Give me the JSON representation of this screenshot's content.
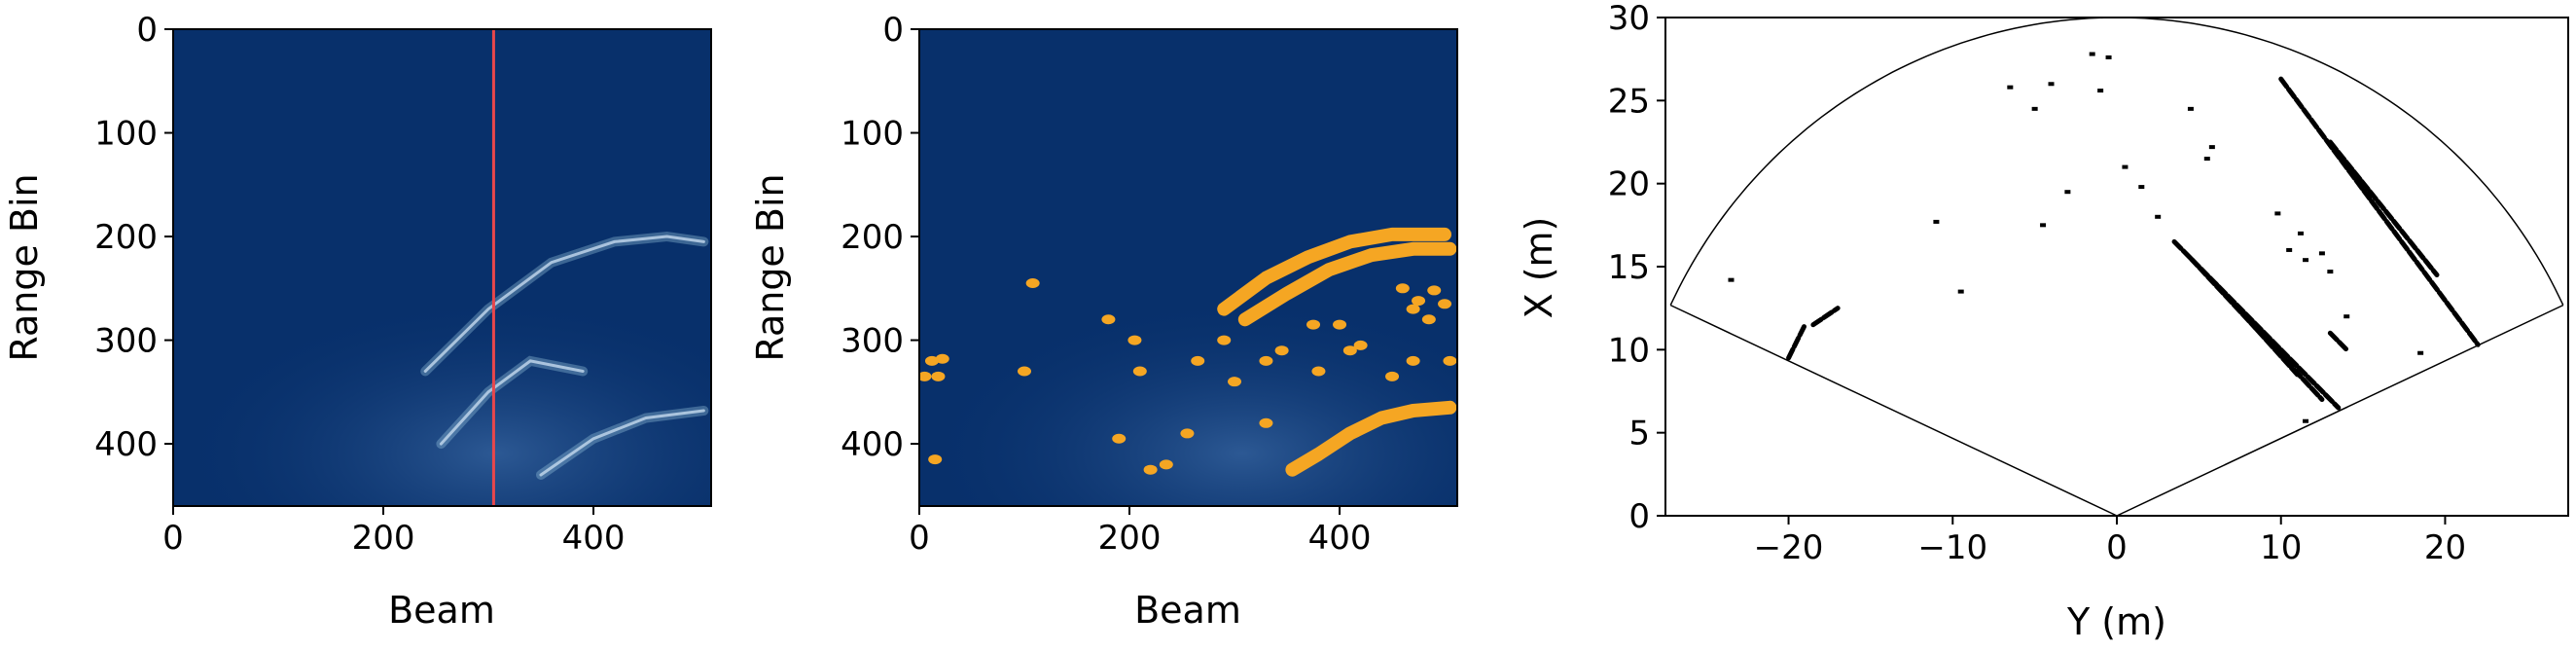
{
  "chart_data": [
    {
      "type": "heatmap",
      "title": "",
      "xlabel": "Beam",
      "ylabel": "Range Bin",
      "xlim": [
        0,
        512
      ],
      "ylim": [
        460,
        0
      ],
      "x_ticks": [
        0,
        200,
        400
      ],
      "y_ticks": [
        0,
        100,
        200,
        300,
        400
      ],
      "colormap": "Blues_r",
      "background_color": "#08306b",
      "vertical_marker": {
        "x": 305,
        "color": "#e8474c"
      },
      "bright_arcs": [
        {
          "points": [
            [
              240,
              330
            ],
            [
              300,
              270
            ],
            [
              360,
              225
            ],
            [
              420,
              205
            ],
            [
              470,
              200
            ],
            [
              505,
              205
            ]
          ]
        },
        {
          "points": [
            [
              255,
              400
            ],
            [
              300,
              350
            ],
            [
              340,
              320
            ],
            [
              390,
              330
            ]
          ]
        },
        {
          "points": [
            [
              350,
              430
            ],
            [
              400,
              395
            ],
            [
              450,
              375
            ],
            [
              505,
              368
            ]
          ]
        }
      ],
      "grid": false,
      "legend": "none"
    },
    {
      "type": "heatmap",
      "title": "",
      "xlabel": "Beam",
      "ylabel": "Range Bin",
      "xlim": [
        0,
        512
      ],
      "ylim": [
        460,
        0
      ],
      "x_ticks": [
        0,
        200,
        400
      ],
      "y_ticks": [
        0,
        100,
        200,
        300,
        400
      ],
      "colormap": "Blues_r",
      "background_color": "#08306b",
      "detection_color": "#f5a623",
      "detections": [
        [
          5,
          335
        ],
        [
          12,
          320
        ],
        [
          18,
          335
        ],
        [
          22,
          318
        ],
        [
          15,
          415
        ],
        [
          100,
          330
        ],
        [
          108,
          245
        ],
        [
          180,
          280
        ],
        [
          205,
          300
        ],
        [
          210,
          330
        ],
        [
          190,
          395
        ],
        [
          220,
          425
        ],
        [
          235,
          420
        ],
        [
          255,
          390
        ],
        [
          265,
          320
        ],
        [
          290,
          300
        ],
        [
          300,
          340
        ],
        [
          330,
          320
        ],
        [
          345,
          310
        ],
        [
          330,
          380
        ],
        [
          375,
          285
        ],
        [
          380,
          330
        ],
        [
          400,
          285
        ],
        [
          410,
          310
        ],
        [
          420,
          305
        ],
        [
          450,
          335
        ],
        [
          470,
          320
        ],
        [
          505,
          320
        ],
        [
          460,
          250
        ],
        [
          475,
          262
        ],
        [
          490,
          252
        ],
        [
          470,
          270
        ],
        [
          485,
          280
        ],
        [
          500,
          265
        ]
      ],
      "detection_arcs": [
        {
          "points": [
            [
              290,
              270
            ],
            [
              330,
              240
            ],
            [
              370,
              220
            ],
            [
              410,
              205
            ],
            [
              450,
              198
            ],
            [
              500,
              198
            ]
          ]
        },
        {
          "points": [
            [
              310,
              280
            ],
            [
              350,
              255
            ],
            [
              390,
              232
            ],
            [
              430,
              218
            ],
            [
              470,
              212
            ],
            [
              505,
              212
            ]
          ]
        },
        {
          "points": [
            [
              355,
              425
            ],
            [
              380,
              410
            ],
            [
              410,
              390
            ],
            [
              440,
              375
            ],
            [
              470,
              368
            ],
            [
              505,
              365
            ]
          ]
        }
      ],
      "grid": false,
      "legend": "none"
    },
    {
      "type": "scatter",
      "title": "",
      "xlabel": "Y (m)",
      "ylabel": "X (m)",
      "xlim": [
        -27.5,
        27.5
      ],
      "ylim": [
        0,
        30
      ],
      "x_ticks": [
        -20,
        -10,
        0,
        10,
        20
      ],
      "x_tick_labels": [
        "−20",
        "−10",
        "0",
        "10",
        "20"
      ],
      "y_ticks": [
        0,
        5,
        10,
        15,
        20,
        25,
        30
      ],
      "point_color": "#000000",
      "fov": {
        "max_range": 30,
        "half_angle_deg": 65
      },
      "segments": [
        {
          "from": [
            3.5,
            16.5
          ],
          "to": [
            13.5,
            6.5
          ]
        },
        {
          "from": [
            4.5,
            15.5
          ],
          "to": [
            12.5,
            7.0
          ]
        },
        {
          "from": [
            6.0,
            14.0
          ],
          "to": [
            11.0,
            8.5
          ]
        },
        {
          "from": [
            10.0,
            26.3
          ],
          "to": [
            22.0,
            10.3
          ]
        },
        {
          "from": [
            13.0,
            22.5
          ],
          "to": [
            19.5,
            14.5
          ]
        },
        {
          "from": [
            -20.0,
            9.5
          ],
          "to": [
            -19.0,
            11.5
          ]
        },
        {
          "from": [
            -18.5,
            11.5
          ],
          "to": [
            -17.0,
            12.5
          ]
        },
        {
          "from": [
            13.0,
            11.0
          ],
          "to": [
            14.0,
            10.0
          ]
        }
      ],
      "points": [
        [
          -23.5,
          14.2
        ],
        [
          -11.0,
          17.7
        ],
        [
          -6.5,
          25.8
        ],
        [
          -5.0,
          24.5
        ],
        [
          -4.0,
          26.0
        ],
        [
          -1.5,
          27.8
        ],
        [
          -0.5,
          27.6
        ],
        [
          -1.0,
          25.6
        ],
        [
          -3.0,
          19.5
        ],
        [
          -4.5,
          17.5
        ],
        [
          -9.5,
          13.5
        ],
        [
          0.5,
          21.0
        ],
        [
          1.5,
          19.8
        ],
        [
          2.5,
          18.0
        ],
        [
          4.5,
          24.5
        ],
        [
          5.5,
          21.5
        ],
        [
          5.8,
          22.2
        ],
        [
          9.8,
          18.2
        ],
        [
          10.5,
          16.0
        ],
        [
          11.5,
          15.4
        ],
        [
          11.2,
          17.0
        ],
        [
          12.5,
          15.8
        ],
        [
          13.0,
          14.7
        ],
        [
          14.0,
          12.0
        ],
        [
          18.5,
          9.8
        ],
        [
          11.5,
          5.7
        ]
      ],
      "grid": false,
      "legend": "none"
    }
  ]
}
